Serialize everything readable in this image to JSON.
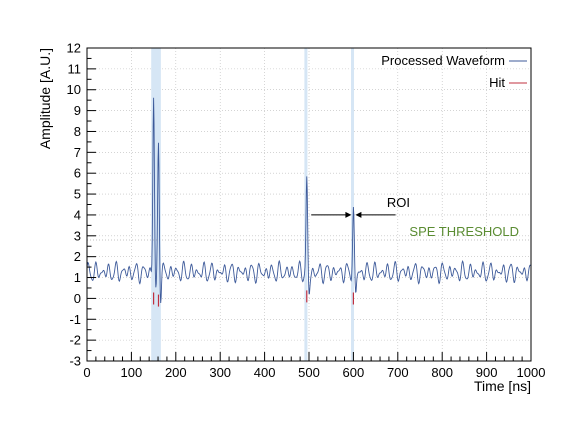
{
  "chart_data": {
    "type": "line",
    "xlabel": "Time [ns]",
    "ylabel": "Amplitude [A.U.]",
    "xlim": [
      0,
      1000
    ],
    "ylim": [
      -3,
      12
    ],
    "x_ticks": [
      "0",
      "100",
      "200",
      "300",
      "400",
      "500",
      "600",
      "700",
      "800",
      "900",
      "1000"
    ],
    "y_ticks": [
      "-3",
      "-2",
      "-1",
      "0",
      "1",
      "2",
      "3",
      "4",
      "5",
      "6",
      "7",
      "8",
      "9",
      "10",
      "11",
      "12"
    ],
    "grid": true,
    "legend_position": "top-right",
    "series": [
      {
        "name": "Processed Waveform",
        "color": "#3d5a9a",
        "baseline": 1.25,
        "noise_amplitude": 0.45,
        "peaks": [
          {
            "x": 150,
            "y": 9.7
          },
          {
            "x": 161,
            "y": 7.5
          },
          {
            "x": 495,
            "y": 5.6
          },
          {
            "x": 600,
            "y": 4.2
          }
        ]
      },
      {
        "name": "Hit",
        "color": "#c0303f",
        "hits": [
          {
            "x": 150,
            "y": -0.1
          },
          {
            "x": 161,
            "y": -0.2
          },
          {
            "x": 495,
            "y": 0.0
          },
          {
            "x": 600,
            "y": -0.1
          }
        ]
      }
    ],
    "hit_bands": [
      148,
      153,
      158,
      163,
      493,
      598
    ],
    "threshold": {
      "label": "SPE THRESHOLD",
      "value": 2.8,
      "color": "#5a8c32"
    },
    "roi": {
      "label": "ROI",
      "from": 550,
      "to": 650,
      "y": 4.0
    }
  }
}
